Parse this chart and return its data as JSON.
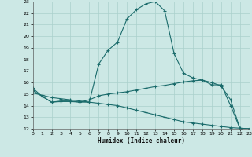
{
  "xlabel": "Humidex (Indice chaleur)",
  "ylabel": "",
  "bg_color": "#cce8e5",
  "grid_color": "#aad0cc",
  "line_color": "#1a6b6b",
  "x_min": 0,
  "x_max": 23,
  "y_min": 12,
  "y_max": 23,
  "line1_x": [
    0,
    1,
    2,
    3,
    4,
    5,
    6,
    7,
    8,
    9,
    10,
    11,
    12,
    13,
    14,
    15,
    16,
    17,
    18,
    19,
    20,
    21,
    22,
    23
  ],
  "line1_y": [
    15.5,
    14.8,
    14.3,
    14.4,
    14.4,
    14.3,
    14.3,
    17.6,
    18.8,
    19.5,
    21.5,
    22.3,
    22.8,
    23.0,
    22.2,
    18.5,
    16.8,
    16.4,
    16.2,
    15.8,
    15.8,
    14.0,
    12.0,
    12.0
  ],
  "line2_x": [
    0,
    1,
    2,
    3,
    4,
    5,
    6,
    7,
    8,
    9,
    10,
    11,
    12,
    13,
    14,
    15,
    16,
    17,
    18,
    19,
    20,
    21,
    22,
    23
  ],
  "line2_y": [
    15.3,
    14.8,
    14.3,
    14.35,
    14.35,
    14.3,
    14.5,
    14.85,
    15.0,
    15.1,
    15.2,
    15.35,
    15.5,
    15.65,
    15.75,
    15.9,
    16.05,
    16.15,
    16.2,
    16.0,
    15.7,
    14.5,
    12.0,
    12.0
  ],
  "line3_x": [
    0,
    1,
    2,
    3,
    4,
    5,
    6,
    7,
    8,
    9,
    10,
    11,
    12,
    13,
    14,
    15,
    16,
    17,
    18,
    19,
    20,
    21,
    22,
    23
  ],
  "line3_y": [
    15.1,
    14.9,
    14.7,
    14.6,
    14.5,
    14.4,
    14.3,
    14.2,
    14.1,
    14.0,
    13.8,
    13.6,
    13.4,
    13.2,
    13.0,
    12.8,
    12.6,
    12.5,
    12.4,
    12.3,
    12.2,
    12.1,
    12.05,
    12.0
  ]
}
